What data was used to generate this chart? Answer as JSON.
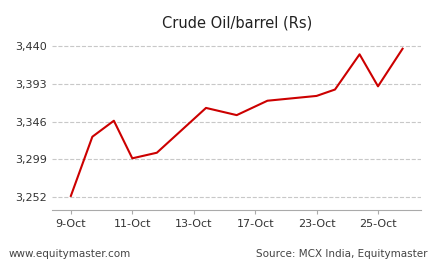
{
  "title": "Crude Oil/barrel (Rs)",
  "x_labels": [
    "9-Oct",
    "11-Oct",
    "13-Oct",
    "17-Oct",
    "23-Oct",
    "25-Oct"
  ],
  "x_tick_positions": [
    0,
    1,
    2,
    3,
    4,
    5
  ],
  "y_values": [
    3253,
    3327,
    3347,
    3300,
    3307,
    3363,
    3354,
    3372,
    3378,
    3386,
    3430,
    3390,
    3437
  ],
  "x_data": [
    0.0,
    0.35,
    0.7,
    1.0,
    1.4,
    2.2,
    2.7,
    3.2,
    4.0,
    4.3,
    4.7,
    5.0,
    5.4
  ],
  "ylim_min": 3235,
  "ylim_max": 3452,
  "yticks": [
    3252,
    3299,
    3346,
    3393,
    3440
  ],
  "ytick_labels": [
    "3,252",
    "3,299",
    "3,346",
    "3,393",
    "3,440"
  ],
  "xlim_min": -0.3,
  "xlim_max": 5.7,
  "line_color": "#cc0000",
  "grid_color": "#c8c8c8",
  "background_color": "#ffffff",
  "footer_left": "www.equitymaster.com",
  "footer_right": "Source: MCX India, Equitymaster",
  "title_fontsize": 10.5,
  "tick_fontsize": 8,
  "footer_fontsize": 7.5
}
